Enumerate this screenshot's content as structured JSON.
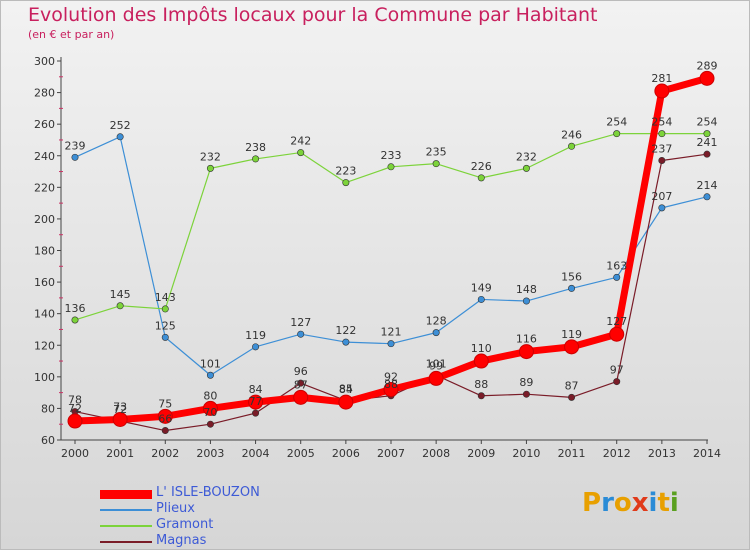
{
  "title": "Evolution des Impôts locaux pour la Commune par Habitant",
  "subtitle": "(en € et par an)",
  "logo": {
    "text": "Proxiti",
    "letter_colors": [
      "#e8a000",
      "#2a8bd6",
      "#e8a000",
      "#e03a1a",
      "#2a8bd6",
      "#e8a000",
      "#5aa020"
    ]
  },
  "chart_data": {
    "type": "line",
    "x": [
      "2000",
      "2001",
      "2002",
      "2003",
      "2004",
      "2005",
      "2006",
      "2007",
      "2008",
      "2009",
      "2010",
      "2011",
      "2012",
      "2013",
      "2014"
    ],
    "ylim": [
      60,
      300
    ],
    "yticks": [
      "60",
      "80",
      "100",
      "120",
      "140",
      "160",
      "180",
      "200",
      "220",
      "240",
      "260",
      "280",
      "300"
    ],
    "grid": false,
    "legend_position": "bottom-left",
    "series": [
      {
        "name": "L' ISLE-BOUZON",
        "color": "#ff0000",
        "values": [
          72,
          73,
          75,
          80,
          84,
          87,
          84,
          92,
          99,
          110,
          116,
          119,
          127,
          281,
          289
        ],
        "labels": [
          "72",
          "73",
          "75",
          "80",
          "84",
          "87",
          "84",
          "92",
          "99",
          "110",
          "116",
          "119",
          "127",
          "281",
          "289"
        ]
      },
      {
        "name": "Plieux",
        "color": "#3d8fd6",
        "values": [
          239,
          252,
          125,
          101,
          119,
          127,
          122,
          121,
          128,
          149,
          148,
          156,
          163,
          207,
          214
        ],
        "labels": [
          "239",
          "252",
          "125",
          "101",
          "119",
          "127",
          "122",
          "121",
          "128",
          "149",
          "148",
          "156",
          "163",
          "207",
          "214"
        ]
      },
      {
        "name": "Gramont",
        "color": "#7cd33a",
        "values": [
          136,
          145,
          143,
          232,
          238,
          242,
          223,
          233,
          235,
          226,
          232,
          246,
          254,
          254,
          254
        ],
        "labels": [
          "136",
          "145",
          "143",
          "232",
          "238",
          "242",
          "223",
          "233",
          "235",
          "226",
          "232",
          "246",
          "254",
          "254",
          "254"
        ]
      },
      {
        "name": "Magnas",
        "color": "#7a1c28",
        "values": [
          78,
          72,
          66,
          70,
          77,
          96,
          85,
          88,
          101,
          88,
          89,
          87,
          97,
          237,
          241
        ],
        "labels": [
          "78",
          "72",
          "66",
          "70",
          "77",
          "96",
          "85",
          "88",
          "101",
          "88",
          "89",
          "87",
          "97",
          "237",
          "241"
        ]
      }
    ]
  }
}
